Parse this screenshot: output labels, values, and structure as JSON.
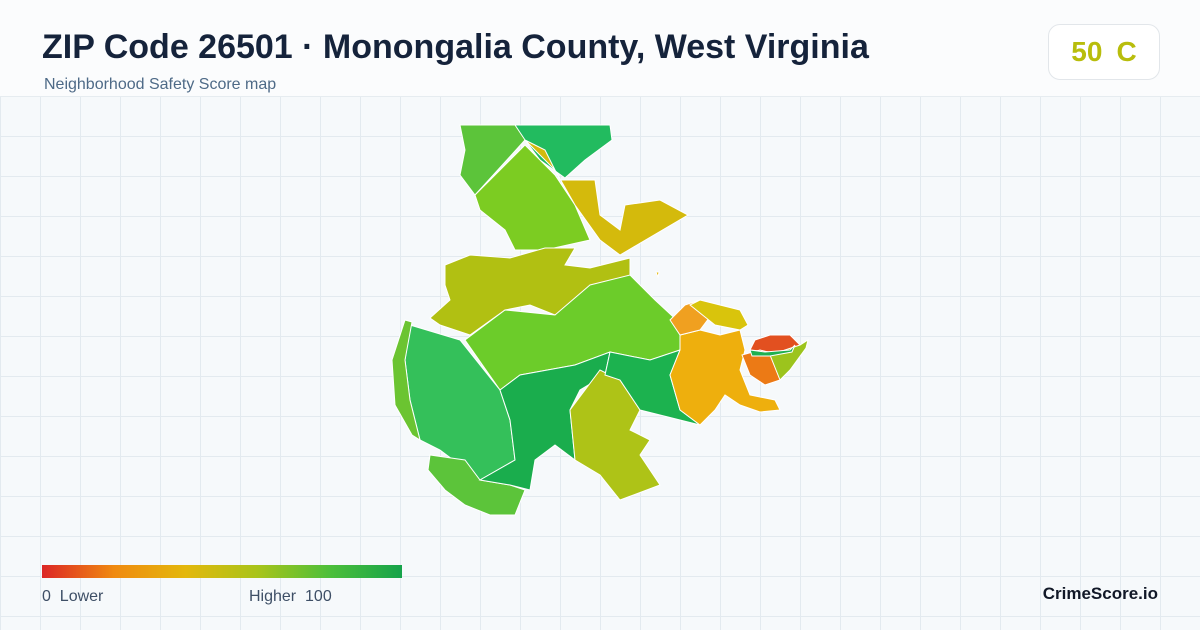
{
  "header": {
    "title": "ZIP Code 26501 · Monongalia County, West Virginia",
    "subtitle": "Neighborhood Safety Score map"
  },
  "score": {
    "value": "50",
    "grade": "C"
  },
  "legend": {
    "min": "0",
    "min_label": "Lower",
    "max_label": "Higher",
    "max": "100"
  },
  "brand": "CrimeScore.io"
}
